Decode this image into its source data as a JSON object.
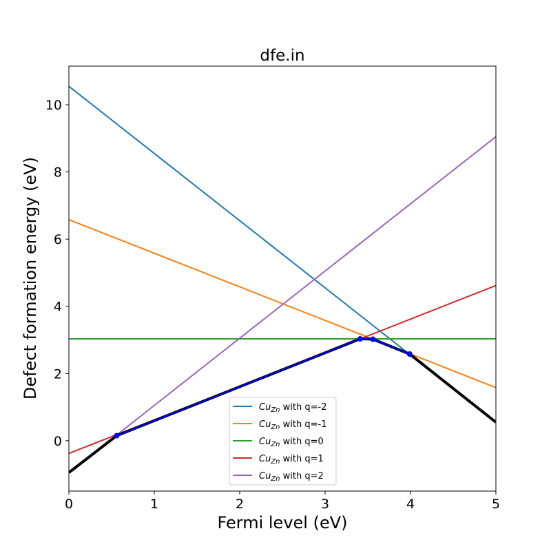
{
  "chart_data": {
    "type": "line",
    "title": "dfe.in",
    "xlabel": "Fermi level (eV)",
    "ylabel": "Defect formation energy (eV)",
    "xlim": [
      0,
      5
    ],
    "ylim": [
      -1.5,
      11.15
    ],
    "xticks": [
      0,
      1,
      2,
      3,
      4,
      5
    ],
    "yticks": [
      0,
      2,
      4,
      6,
      8,
      10
    ],
    "grid": false,
    "legend_position": "lower-center",
    "series": [
      {
        "name": "Cu_Zn with q=-2",
        "legend": {
          "prefix": "Cu",
          "sub": "Zn",
          "suffix": " with q=-2"
        },
        "color": "#1f77b4",
        "x": [
          0,
          5
        ],
        "y": [
          10.55,
          0.55
        ]
      },
      {
        "name": "Cu_Zn with q=-1",
        "legend": {
          "prefix": "Cu",
          "sub": "Zn",
          "suffix": " with q=-1"
        },
        "color": "#ff7f0e",
        "x": [
          0,
          5
        ],
        "y": [
          6.58,
          1.58
        ]
      },
      {
        "name": "Cu_Zn with q=0",
        "legend": {
          "prefix": "Cu",
          "sub": "Zn",
          "suffix": " with q=0"
        },
        "color": "#2ca02c",
        "x": [
          0,
          5
        ],
        "y": [
          3.03,
          3.03
        ]
      },
      {
        "name": "Cu_Zn with q=1",
        "legend": {
          "prefix": "Cu",
          "sub": "Zn",
          "suffix": " with q=1"
        },
        "color": "#d62728",
        "x": [
          0,
          5
        ],
        "y": [
          -0.38,
          4.62
        ]
      },
      {
        "name": "Cu_Zn with q=2",
        "legend": {
          "prefix": "Cu",
          "sub": "Zn",
          "suffix": " with q=2"
        },
        "color": "#9467bd",
        "x": [
          0,
          5
        ],
        "y": [
          -0.95,
          9.05
        ]
      }
    ],
    "envelope": {
      "color": "#000000",
      "x": [
        0,
        0.56,
        3.41,
        3.56,
        3.99,
        5
      ],
      "y": [
        -0.95,
        0.15,
        3.03,
        3.02,
        2.58,
        0.55
      ]
    },
    "transition_points": {
      "color": "#0000ff",
      "x": [
        0.56,
        3.41,
        3.56,
        3.99
      ],
      "y": [
        0.15,
        3.03,
        3.02,
        2.58
      ]
    }
  }
}
